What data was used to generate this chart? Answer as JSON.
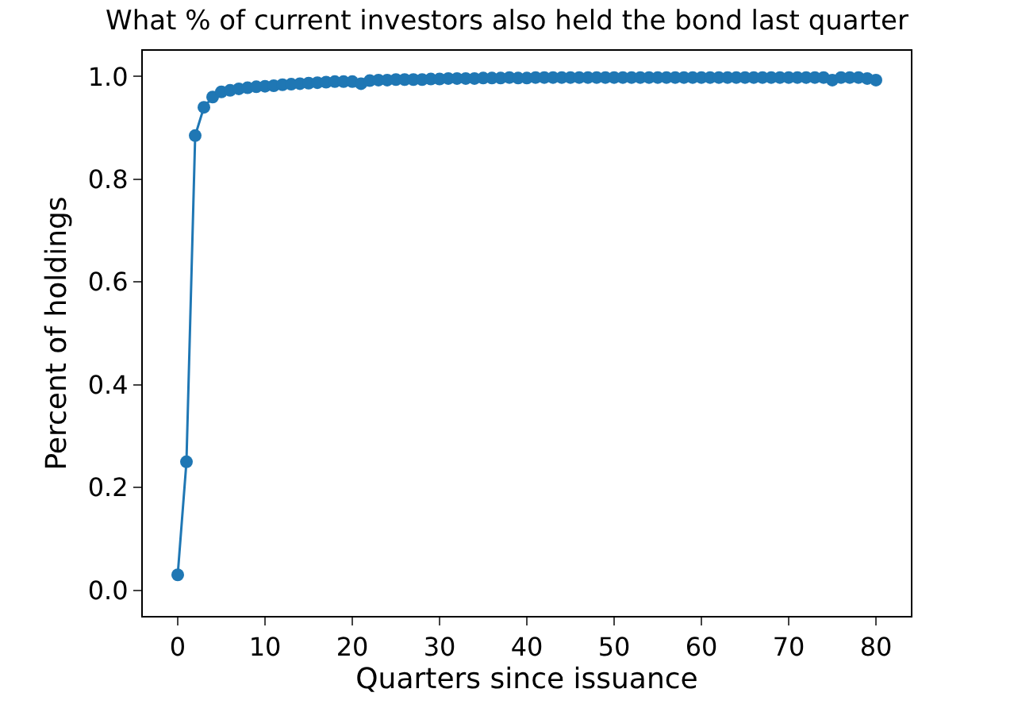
{
  "chart_data": {
    "type": "line",
    "title": "What % of current investors also held the bond last quarter",
    "xlabel": "Quarters since issuance",
    "ylabel": "Percent of holdings",
    "x": [
      0,
      1,
      2,
      3,
      4,
      5,
      6,
      7,
      8,
      9,
      10,
      11,
      12,
      13,
      14,
      15,
      16,
      17,
      18,
      19,
      20,
      21,
      22,
      23,
      24,
      25,
      26,
      27,
      28,
      29,
      30,
      31,
      32,
      33,
      34,
      35,
      36,
      37,
      38,
      39,
      40,
      41,
      42,
      43,
      44,
      45,
      46,
      47,
      48,
      49,
      50,
      51,
      52,
      53,
      54,
      55,
      56,
      57,
      58,
      59,
      60,
      61,
      62,
      63,
      64,
      65,
      66,
      67,
      68,
      69,
      70,
      71,
      72,
      73,
      74,
      75,
      76,
      77,
      78,
      79,
      80
    ],
    "series": [
      {
        "color": "#1f77b4",
        "values": [
          0.03,
          0.25,
          0.885,
          0.94,
          0.96,
          0.97,
          0.973,
          0.976,
          0.978,
          0.98,
          0.981,
          0.982,
          0.984,
          0.985,
          0.986,
          0.987,
          0.988,
          0.989,
          0.99,
          0.99,
          0.99,
          0.986,
          0.992,
          0.993,
          0.993,
          0.994,
          0.994,
          0.994,
          0.994,
          0.995,
          0.995,
          0.996,
          0.996,
          0.996,
          0.996,
          0.997,
          0.997,
          0.997,
          0.998,
          0.997,
          0.997,
          0.998,
          0.998,
          0.998,
          0.998,
          0.998,
          0.998,
          0.998,
          0.998,
          0.998,
          0.998,
          0.998,
          0.998,
          0.998,
          0.998,
          0.998,
          0.998,
          0.998,
          0.998,
          0.998,
          0.998,
          0.998,
          0.998,
          0.998,
          0.998,
          0.998,
          0.998,
          0.998,
          0.998,
          0.998,
          0.998,
          0.998,
          0.998,
          0.998,
          0.998,
          0.993,
          0.998,
          0.998,
          0.998,
          0.996,
          0.993
        ]
      }
    ],
    "xlim": [
      -4,
      84
    ],
    "ylim": [
      -0.05,
      1.05
    ],
    "xticks": [
      0,
      10,
      20,
      30,
      40,
      50,
      60,
      70,
      80
    ],
    "yticks": [
      {
        "value": 0,
        "label": "0.0"
      },
      {
        "value": 0.2,
        "label": "0.2"
      },
      {
        "value": 0.4,
        "label": "0.4"
      },
      {
        "value": 0.6,
        "label": "0.6"
      },
      {
        "value": 0.8,
        "label": "0.8"
      },
      {
        "value": 1.0,
        "label": "1.0"
      }
    ],
    "marker": "circle",
    "line_style": "solid"
  }
}
